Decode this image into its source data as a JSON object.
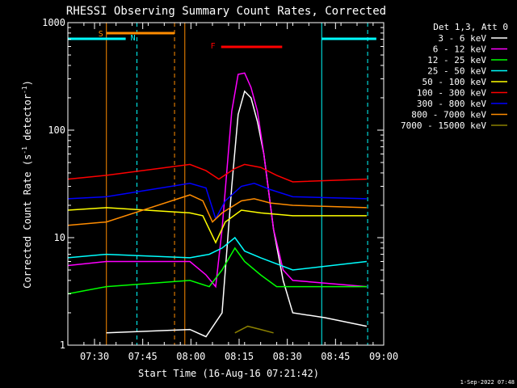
{
  "chart_data": {
    "type": "line",
    "title": "RHESSI Observing Summary Count Rates, Corrected",
    "xlabel": "Start Time (16-Aug-16 07:21:42)",
    "ylabel_main": "Corrected Count Rate (s",
    "ylabel_sup1": "-1",
    "ylabel_mid": " detector",
    "ylabel_sup2": "-1",
    "ylabel_end": ")",
    "y_scale": "log",
    "ylim": [
      1,
      1000
    ],
    "y_ticks": [
      {
        "value": 1,
        "label": "1"
      },
      {
        "value": 10,
        "label": "10"
      },
      {
        "value": 100,
        "label": "100"
      },
      {
        "value": 1000,
        "label": "1000"
      }
    ],
    "x_range_minutes": [
      0,
      98.3
    ],
    "x_ticks": [
      {
        "minute": 8.3,
        "label": "07:30"
      },
      {
        "minute": 23.3,
        "label": "07:45"
      },
      {
        "minute": 38.3,
        "label": "08:00"
      },
      {
        "minute": 53.3,
        "label": "08:15"
      },
      {
        "minute": 68.3,
        "label": "08:30"
      },
      {
        "minute": 83.3,
        "label": "08:45"
      },
      {
        "minute": 98.3,
        "label": "09:00"
      }
    ],
    "legend_title": "Det 1,3, Att 0",
    "legend_position": "right",
    "series": [
      {
        "name": "3 - 6 keV",
        "color": "#ffffff",
        "points": [
          [
            12,
            1.3
          ],
          [
            38,
            1.4
          ],
          [
            43,
            1.2
          ],
          [
            48,
            2.0
          ],
          [
            51,
            30
          ],
          [
            53,
            140
          ],
          [
            55,
            230
          ],
          [
            57,
            200
          ],
          [
            59,
            120
          ],
          [
            61,
            60
          ],
          [
            64,
            12
          ],
          [
            67,
            4
          ],
          [
            70,
            2
          ],
          [
            80,
            1.8
          ],
          [
            93,
            1.5
          ]
        ]
      },
      {
        "name": "6 - 12 keV",
        "color": "#ff00ff",
        "points": [
          [
            0,
            5.5
          ],
          [
            12,
            6.0
          ],
          [
            38,
            6.0
          ],
          [
            43,
            4.5
          ],
          [
            46,
            3.5
          ],
          [
            48,
            12
          ],
          [
            51,
            150
          ],
          [
            53,
            330
          ],
          [
            55,
            340
          ],
          [
            57,
            250
          ],
          [
            59,
            150
          ],
          [
            61,
            60
          ],
          [
            64,
            12
          ],
          [
            67,
            5
          ],
          [
            70,
            4
          ],
          [
            93,
            3.5
          ]
        ]
      },
      {
        "name": "12 - 25 keV",
        "color": "#00ff00",
        "points": [
          [
            0,
            3.0
          ],
          [
            12,
            3.5
          ],
          [
            38,
            4.0
          ],
          [
            44,
            3.5
          ],
          [
            48,
            5
          ],
          [
            52,
            8
          ],
          [
            55,
            6
          ],
          [
            60,
            4.5
          ],
          [
            65,
            3.5
          ],
          [
            93,
            3.5
          ]
        ]
      },
      {
        "name": "25 - 50 keV",
        "color": "#00ffff",
        "points": [
          [
            0,
            6.5
          ],
          [
            12,
            7.0
          ],
          [
            38,
            6.5
          ],
          [
            44,
            7
          ],
          [
            48,
            8
          ],
          [
            52,
            10
          ],
          [
            55,
            7.5
          ],
          [
            60,
            6.5
          ],
          [
            70,
            5
          ],
          [
            93,
            6
          ]
        ]
      },
      {
        "name": "50 - 100 keV",
        "color": "#ffff00",
        "points": [
          [
            0,
            18
          ],
          [
            12,
            19
          ],
          [
            38,
            17
          ],
          [
            42,
            16
          ],
          [
            46,
            9
          ],
          [
            49,
            14
          ],
          [
            54,
            18
          ],
          [
            60,
            17
          ],
          [
            70,
            16
          ],
          [
            93,
            16
          ]
        ]
      },
      {
        "name": "100 - 300 keV",
        "color": "#ff0000",
        "points": [
          [
            0,
            35
          ],
          [
            12,
            38
          ],
          [
            38,
            48
          ],
          [
            43,
            42
          ],
          [
            47,
            35
          ],
          [
            52,
            44
          ],
          [
            55,
            48
          ],
          [
            60,
            45
          ],
          [
            65,
            38
          ],
          [
            70,
            33
          ],
          [
            93,
            35
          ]
        ]
      },
      {
        "name": "300 - 800 keV",
        "color": "#0000ff",
        "points": [
          [
            0,
            23
          ],
          [
            12,
            24
          ],
          [
            38,
            32
          ],
          [
            43,
            29
          ],
          [
            46,
            15
          ],
          [
            49,
            22
          ],
          [
            54,
            30
          ],
          [
            58,
            32
          ],
          [
            63,
            28
          ],
          [
            70,
            24
          ],
          [
            93,
            23
          ]
        ]
      },
      {
        "name": "800 - 7000 keV",
        "color": "#ff8c00",
        "points": [
          [
            0,
            13
          ],
          [
            12,
            14
          ],
          [
            38,
            25
          ],
          [
            42,
            22
          ],
          [
            45,
            14
          ],
          [
            48,
            17
          ],
          [
            54,
            22
          ],
          [
            58,
            23
          ],
          [
            63,
            21
          ],
          [
            70,
            20
          ],
          [
            93,
            19
          ]
        ]
      },
      {
        "name": "7000 - 15000 keV",
        "color": "#8b8000",
        "points": [
          [
            52,
            1.3
          ],
          [
            56,
            1.5
          ],
          [
            60,
            1.4
          ],
          [
            64,
            1.3
          ]
        ]
      }
    ],
    "annotations": [
      {
        "label": "S",
        "color": "#ff8c00"
      },
      {
        "label": "N",
        "color": "#00ffff"
      },
      {
        "label": "F",
        "color": "#ff0000"
      }
    ],
    "timestamp": "1-Sep-2022 07:48"
  }
}
